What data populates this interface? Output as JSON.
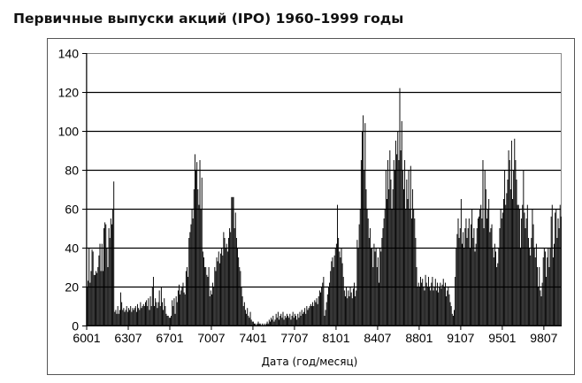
{
  "chart_data": {
    "type": "bar",
    "title": "Первичные выпуски акций (IPO) 1960–1999 годы",
    "xlabel": "Дата (год/месяц)",
    "ylabel": "",
    "ylim": [
      0,
      140
    ],
    "yticks": [
      0,
      20,
      40,
      60,
      80,
      100,
      120,
      140
    ],
    "x_start": "6001",
    "x_end": "9912",
    "x_frequency": "monthly",
    "xtick_labels": [
      "6001",
      "6307",
      "6701",
      "7007",
      "7401",
      "7707",
      "8101",
      "8407",
      "8801",
      "9107",
      "9501",
      "9807"
    ],
    "xtick_step_months": 42,
    "grid": true,
    "legend": "none",
    "colors": {
      "bar": "#000000",
      "grid": "#000000",
      "frame": "#888888"
    },
    "values": [
      20,
      23,
      40,
      22,
      28,
      39,
      38,
      26,
      26,
      28,
      27,
      30,
      36,
      42,
      28,
      42,
      28,
      50,
      53,
      52,
      40,
      30,
      50,
      45,
      55,
      52,
      60,
      74,
      7,
      8,
      6,
      10,
      6,
      8,
      17,
      12,
      8,
      9,
      7,
      8,
      10,
      7,
      9,
      8,
      10,
      7,
      9,
      8,
      9,
      10,
      7,
      11,
      9,
      8,
      12,
      9,
      10,
      11,
      10,
      12,
      13,
      10,
      14,
      8,
      15,
      10,
      20,
      25,
      10,
      14,
      12,
      9,
      12,
      18,
      10,
      20,
      12,
      8,
      14,
      10,
      6,
      5,
      5,
      4,
      4,
      5,
      13,
      10,
      14,
      6,
      15,
      12,
      18,
      21,
      16,
      18,
      20,
      22,
      17,
      16,
      28,
      30,
      25,
      45,
      48,
      52,
      60,
      55,
      70,
      88,
      80,
      84,
      70,
      62,
      85,
      60,
      76,
      38,
      35,
      30,
      30,
      26,
      25,
      30,
      15,
      18,
      16,
      22,
      20,
      30,
      28,
      35,
      33,
      38,
      32,
      37,
      40,
      36,
      48,
      45,
      40,
      42,
      38,
      45,
      50,
      48,
      66,
      66,
      66,
      50,
      58,
      45,
      40,
      35,
      30,
      28,
      20,
      15,
      10,
      12,
      8,
      6,
      9,
      5,
      4,
      7,
      3,
      2,
      2,
      1,
      1,
      0,
      1,
      2,
      1,
      1,
      0,
      1,
      0,
      1,
      0,
      1,
      2,
      1,
      3,
      2,
      4,
      3,
      5,
      2,
      3,
      6,
      4,
      7,
      3,
      5,
      6,
      4,
      7,
      3,
      5,
      4,
      6,
      5,
      4,
      6,
      3,
      5,
      7,
      4,
      6,
      5,
      3,
      6,
      4,
      7,
      5,
      8,
      6,
      7,
      9,
      6,
      10,
      8,
      9,
      10,
      11,
      10,
      12,
      10,
      13,
      12,
      14,
      11,
      15,
      18,
      17,
      20,
      22,
      25,
      5,
      8,
      12,
      16,
      20,
      22,
      28,
      33,
      35,
      30,
      36,
      40,
      42,
      62,
      45,
      38,
      35,
      40,
      32,
      25,
      18,
      15,
      20,
      14,
      18,
      15,
      20,
      17,
      14,
      19,
      22,
      15,
      18,
      44,
      40,
      52,
      60,
      85,
      100,
      108,
      80,
      104,
      70,
      60,
      55,
      45,
      50,
      40,
      40,
      30,
      42,
      38,
      40,
      30,
      35,
      22,
      40,
      38,
      45,
      50,
      55,
      60,
      80,
      65,
      85,
      70,
      90,
      75,
      60,
      70,
      85,
      80,
      95,
      88,
      100,
      85,
      122,
      90,
      105,
      80,
      70,
      85,
      60,
      75,
      65,
      80,
      60,
      82,
      55,
      70,
      60,
      55,
      45,
      30,
      20,
      22,
      20,
      25,
      22,
      24,
      20,
      18,
      26,
      22,
      20,
      25,
      20,
      18,
      22,
      25,
      18,
      20,
      24,
      18,
      22,
      17,
      20,
      22,
      19,
      21,
      24,
      20,
      22,
      15,
      18,
      20,
      16,
      12,
      10,
      6,
      5,
      8,
      25,
      40,
      47,
      55,
      45,
      50,
      65,
      42,
      48,
      40,
      50,
      55,
      45,
      50,
      55,
      40,
      52,
      60,
      45,
      50,
      38,
      42,
      50,
      55,
      56,
      60,
      62,
      55,
      85,
      50,
      80,
      70,
      55,
      60,
      65,
      48,
      50,
      52,
      40,
      35,
      42,
      38,
      30,
      32,
      40,
      50,
      60,
      55,
      58,
      65,
      80,
      62,
      68,
      75,
      90,
      85,
      70,
      95,
      65,
      80,
      96,
      85,
      75,
      62,
      62,
      60,
      40,
      55,
      62,
      80,
      58,
      50,
      55,
      62,
      45,
      40,
      36,
      45,
      60,
      52,
      40,
      35,
      42,
      30,
      20,
      30,
      18,
      15,
      22,
      35,
      40,
      38,
      25,
      35,
      40,
      30,
      40,
      56,
      62,
      35,
      42,
      58,
      60,
      45,
      55,
      50,
      62,
      56
    ]
  }
}
